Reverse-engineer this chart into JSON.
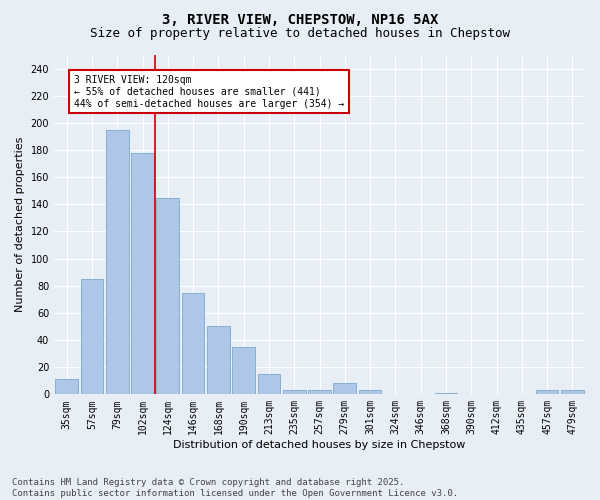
{
  "title": "3, RIVER VIEW, CHEPSTOW, NP16 5AX",
  "subtitle": "Size of property relative to detached houses in Chepstow",
  "xlabel": "Distribution of detached houses by size in Chepstow",
  "ylabel": "Number of detached properties",
  "categories": [
    "35sqm",
    "57sqm",
    "79sqm",
    "102sqm",
    "124sqm",
    "146sqm",
    "168sqm",
    "190sqm",
    "213sqm",
    "235sqm",
    "257sqm",
    "279sqm",
    "301sqm",
    "324sqm",
    "346sqm",
    "368sqm",
    "390sqm",
    "412sqm",
    "435sqm",
    "457sqm",
    "479sqm"
  ],
  "values": [
    11,
    85,
    195,
    178,
    145,
    75,
    50,
    35,
    15,
    3,
    3,
    8,
    3,
    0,
    0,
    1,
    0,
    0,
    0,
    3,
    3
  ],
  "bar_color": "#aec6e8",
  "bar_edge_color": "#6b9fc8",
  "vline_color": "#cc0000",
  "vline_index": 4,
  "annotation_title": "3 RIVER VIEW: 120sqm",
  "annotation_line1": "← 55% of detached houses are smaller (441)",
  "annotation_line2": "44% of semi-detached houses are larger (354) →",
  "annotation_box_edgecolor": "#cc0000",
  "ylim": [
    0,
    250
  ],
  "yticks": [
    0,
    20,
    40,
    60,
    80,
    100,
    120,
    140,
    160,
    180,
    200,
    220,
    240
  ],
  "footer": "Contains HM Land Registry data © Crown copyright and database right 2025.\nContains public sector information licensed under the Open Government Licence v3.0.",
  "background_color": "#e8eef5",
  "grid_color": "#ffffff",
  "title_fontsize": 10,
  "subtitle_fontsize": 9,
  "axis_label_fontsize": 8,
  "tick_fontsize": 7,
  "annotation_fontsize": 7,
  "footer_fontsize": 6.5
}
